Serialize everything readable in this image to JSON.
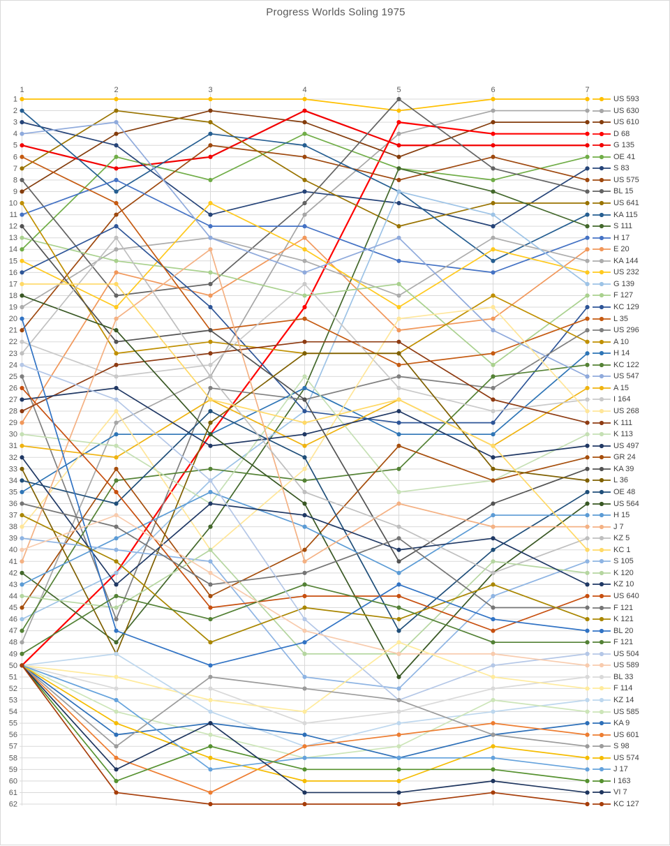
{
  "chart_data": {
    "type": "line",
    "title": "Progress Worlds Soling 1975",
    "xlabel": "",
    "ylabel": "",
    "x": [
      1,
      2,
      3,
      4,
      5,
      6,
      7
    ],
    "x_axis_position": "top",
    "y_axis": {
      "min": 1,
      "max": 62,
      "inverted": true,
      "tick_step": 1
    },
    "grid": true,
    "legend_position": "right",
    "series": [
      {
        "name": "US 593",
        "color": "#FFC000",
        "ranks": [
          1,
          1,
          1,
          1,
          2,
          1,
          1
        ]
      },
      {
        "name": "US 630",
        "color": "#A6A6A6",
        "ranks": [
          48,
          29,
          25,
          11,
          4,
          2,
          2
        ]
      },
      {
        "name": "US 610",
        "color": "#843C0C",
        "ranks": [
          9,
          4,
          2,
          3,
          6,
          3,
          3
        ]
      },
      {
        "name": "D 68",
        "color": "#FF0000",
        "ranks": [
          50,
          42,
          30,
          19,
          3,
          4,
          4
        ]
      },
      {
        "name": "G 135",
        "color": "#F20000",
        "ranks": [
          5,
          7,
          6,
          2,
          5,
          5,
          5
        ]
      },
      {
        "name": "OE 41",
        "color": "#70AD47",
        "ranks": [
          14,
          6,
          8,
          4,
          7,
          8,
          6
        ]
      },
      {
        "name": "S 83",
        "color": "#264478",
        "ranks": [
          3,
          5,
          11,
          9,
          10,
          12,
          7
        ]
      },
      {
        "name": "US 575",
        "color": "#9E480E",
        "ranks": [
          21,
          11,
          5,
          6,
          8,
          6,
          8
        ]
      },
      {
        "name": "BL 15",
        "color": "#636363",
        "ranks": [
          8,
          18,
          17,
          10,
          1,
          7,
          9
        ]
      },
      {
        "name": "US 641",
        "color": "#997300",
        "ranks": [
          7,
          2,
          3,
          8,
          12,
          10,
          10
        ]
      },
      {
        "name": "KA 115",
        "color": "#255E91",
        "ranks": [
          2,
          9,
          4,
          5,
          9,
          15,
          11
        ]
      },
      {
        "name": "S 111",
        "color": "#43682B",
        "ranks": [
          42,
          48,
          38,
          26,
          7,
          9,
          12
        ]
      },
      {
        "name": "H 17",
        "color": "#4472C4",
        "ranks": [
          11,
          8,
          12,
          12,
          15,
          16,
          13
        ]
      },
      {
        "name": "E 20",
        "color": "#F1975A",
        "ranks": [
          29,
          16,
          18,
          13,
          21,
          20,
          14
        ]
      },
      {
        "name": "KA 144",
        "color": "#ACACAC",
        "ranks": [
          19,
          14,
          13,
          15,
          18,
          13,
          15
        ]
      },
      {
        "name": "US 232",
        "color": "#FFC91E",
        "ranks": [
          15,
          19,
          10,
          14,
          19,
          14,
          16
        ]
      },
      {
        "name": "G 139",
        "color": "#9DC3E6",
        "ranks": [
          46,
          42,
          34,
          28,
          9,
          11,
          17
        ]
      },
      {
        "name": "F 127",
        "color": "#A9D18E",
        "ranks": [
          13,
          15,
          16,
          18,
          17,
          24,
          18
        ]
      },
      {
        "name": "KC 129",
        "color": "#2E5597",
        "ranks": [
          16,
          12,
          19,
          28,
          29,
          29,
          19
        ]
      },
      {
        "name": "L 35",
        "color": "#C55A11",
        "ranks": [
          6,
          10,
          21,
          20,
          24,
          23,
          20
        ]
      },
      {
        "name": "US 296",
        "color": "#7F7F7F",
        "ranks": [
          25,
          46,
          26,
          27,
          25,
          26,
          21
        ]
      },
      {
        "name": "A 10",
        "color": "#BF8F00",
        "ranks": [
          10,
          23,
          22,
          23,
          23,
          18,
          22
        ]
      },
      {
        "name": "H 14",
        "color": "#2E75B6",
        "ranks": [
          35,
          30,
          30,
          26,
          30,
          30,
          23
        ]
      },
      {
        "name": "KC 122",
        "color": "#548235",
        "ranks": [
          47,
          34,
          33,
          34,
          33,
          25,
          24
        ]
      },
      {
        "name": "US 547",
        "color": "#8FAADC",
        "ranks": [
          4,
          3,
          13,
          16,
          13,
          21,
          25
        ]
      },
      {
        "name": "A 15",
        "color": "#EFB310",
        "ranks": [
          31,
          32,
          27,
          31,
          27,
          31,
          26
        ]
      },
      {
        "name": "I 164",
        "color": "#C9C9C9",
        "ranks": [
          22,
          25,
          24,
          17,
          26,
          28,
          27
        ]
      },
      {
        "name": "US 268",
        "color": "#FFE699",
        "ranks": [
          38,
          28,
          40,
          33,
          20,
          19,
          28
        ]
      },
      {
        "name": "K 111",
        "color": "#8E3B12",
        "ranks": [
          28,
          24,
          23,
          22,
          22,
          27,
          29
        ]
      },
      {
        "name": "K 113",
        "color": "#C5E0B4",
        "ranks": [
          30,
          31,
          36,
          25,
          35,
          34,
          30
        ]
      },
      {
        "name": "US 497",
        "color": "#203864",
        "ranks": [
          27,
          26,
          31,
          30,
          28,
          32,
          31
        ]
      },
      {
        "name": "GR 24",
        "color": "#A64E0C",
        "ranks": [
          45,
          33,
          44,
          40,
          31,
          34,
          32
        ]
      },
      {
        "name": "KA 39",
        "color": "#525252",
        "ranks": [
          12,
          22,
          21,
          27,
          41,
          36,
          33
        ]
      },
      {
        "name": "L 36",
        "color": "#7F6000",
        "ranks": [
          33,
          49,
          29,
          23,
          23,
          33,
          34
        ]
      },
      {
        "name": "OE 48",
        "color": "#1F4E79",
        "ranks": [
          34,
          36,
          28,
          32,
          47,
          40,
          35
        ]
      },
      {
        "name": "US 564",
        "color": "#385723",
        "ranks": [
          18,
          21,
          30,
          36,
          51,
          42,
          36
        ]
      },
      {
        "name": "H 15",
        "color": "#5B9BD5",
        "ranks": [
          43,
          39,
          35,
          38,
          42,
          37,
          37
        ]
      },
      {
        "name": "J 7",
        "color": "#F4B183",
        "ranks": [
          41,
          20,
          14,
          41,
          36,
          38,
          38
        ]
      },
      {
        "name": "KZ 5",
        "color": "#BFBFBF",
        "ranks": [
          23,
          13,
          25,
          35,
          38,
          42,
          39
        ]
      },
      {
        "name": "KC 1",
        "color": "#FFD966",
        "ranks": [
          17,
          17,
          27,
          29,
          27,
          31,
          40
        ]
      },
      {
        "name": "S 105",
        "color": "#8EB4E3",
        "ranks": [
          39,
          40,
          41,
          51,
          52,
          44,
          41
        ]
      },
      {
        "name": "K 120",
        "color": "#B5D6A0",
        "ranks": [
          44,
          45,
          40,
          49,
          49,
          41,
          42
        ]
      },
      {
        "name": "KZ 10",
        "color": "#1F3864",
        "ranks": [
          32,
          43,
          36,
          37,
          40,
          39,
          43
        ]
      },
      {
        "name": "US 640",
        "color": "#C74F0F",
        "ranks": [
          26,
          35,
          45,
          44,
          44,
          47,
          44
        ]
      },
      {
        "name": "F 121",
        "color": "#757575",
        "ranks": [
          36,
          38,
          43,
          42,
          39,
          45,
          45
        ]
      },
      {
        "name": "K 121",
        "color": "#A98600",
        "ranks": [
          37,
          41,
          48,
          45,
          46,
          43,
          46
        ]
      },
      {
        "name": "BL 20",
        "color": "#3173C4",
        "ranks": [
          20,
          47,
          50,
          48,
          43,
          46,
          47
        ]
      },
      {
        "name": "F 121",
        "color": "#538135",
        "ranks": [
          49,
          44,
          46,
          43,
          45,
          48,
          48
        ]
      },
      {
        "name": "US 504",
        "color": "#B4C7E7",
        "ranks": [
          24,
          27,
          34,
          46,
          53,
          50,
          49
        ]
      },
      {
        "name": "US 589",
        "color": "#F8CBAD",
        "ranks": [
          40,
          37,
          42,
          47,
          49,
          49,
          50
        ]
      },
      {
        "name": "BL 33",
        "color": "#D9D9D9",
        "ranks": [
          50,
          52,
          52,
          55,
          54,
          52,
          51
        ]
      },
      {
        "name": "F 114",
        "color": "#FFEB9C",
        "ranks": [
          50,
          51,
          53,
          54,
          48,
          51,
          52
        ]
      },
      {
        "name": "KZ 14",
        "color": "#BDD7EE",
        "ranks": [
          50,
          49,
          54,
          57,
          55,
          54,
          53
        ]
      },
      {
        "name": "US 585",
        "color": "#CCE5B8",
        "ranks": [
          50,
          54,
          56,
          58,
          57,
          53,
          54
        ]
      },
      {
        "name": "KA 9",
        "color": "#2D6FB8",
        "ranks": [
          50,
          56,
          55,
          56,
          58,
          56,
          55
        ]
      },
      {
        "name": "US 601",
        "color": "#ED7D31",
        "ranks": [
          50,
          58,
          61,
          57,
          56,
          55,
          56
        ]
      },
      {
        "name": "S 98",
        "color": "#9B9B9B",
        "ranks": [
          50,
          57,
          51,
          52,
          53,
          56,
          57
        ]
      },
      {
        "name": "US 574",
        "color": "#F5BC00",
        "ranks": [
          50,
          55,
          58,
          60,
          60,
          57,
          58
        ]
      },
      {
        "name": "J 17",
        "color": "#64A2DC",
        "ranks": [
          50,
          53,
          59,
          58,
          58,
          58,
          59
        ]
      },
      {
        "name": "I 163",
        "color": "#55912F",
        "ranks": [
          50,
          60,
          57,
          59,
          59,
          59,
          60
        ]
      },
      {
        "name": "VI 7",
        "color": "#1E355E",
        "ranks": [
          50,
          59,
          55,
          61,
          61,
          60,
          61
        ]
      },
      {
        "name": "KC 127",
        "color": "#A63D09",
        "ranks": [
          50,
          61,
          62,
          62,
          62,
          61,
          62
        ]
      }
    ]
  },
  "style": {
    "title_color": "#595959",
    "axis_label_color": "#595959",
    "gridline_color": "#D9D9D9",
    "legend_text_color": "#404040",
    "background": "#FFFFFF",
    "frame_border": "#D9D9D9"
  }
}
